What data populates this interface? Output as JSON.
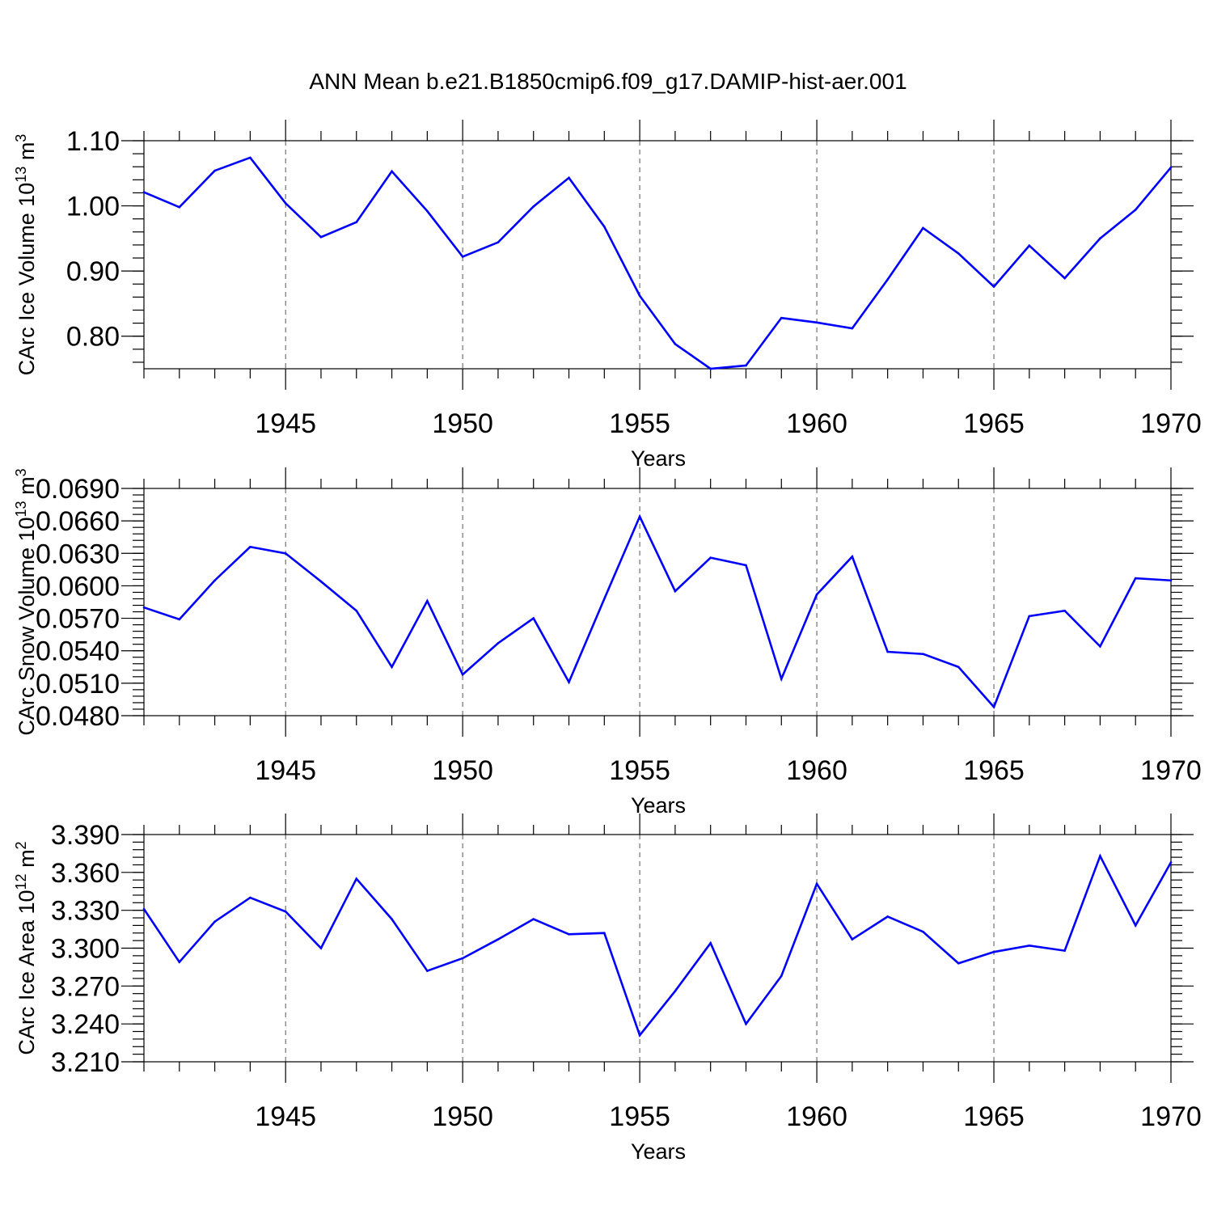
{
  "figure": {
    "title": "ANN Mean b.e21.B1850cmip6.f09_g17.DAMIP-hist-aer.001"
  },
  "style": {
    "line_color": "#0000ff",
    "axis_color": "#000000",
    "grid_color": "#555555"
  },
  "chart_data": [
    {
      "type": "line",
      "name": "ice-volume",
      "title": "",
      "xlabel": "Years",
      "ylabel": "CArc Ice Volume 10",
      "ylabel_exp": "13",
      "ylabel_unit": " m",
      "ylabel_unit_exp": "3",
      "xlim": [
        1941,
        1970
      ],
      "ylim": [
        0.75,
        1.1
      ],
      "xticks": [
        1945,
        1950,
        1955,
        1960,
        1965,
        1970
      ],
      "xtick_labels": [
        "1945",
        "1950",
        "1955",
        "1960",
        "1965",
        "1970"
      ],
      "yticks": [
        0.8,
        0.9,
        1.0,
        1.1
      ],
      "ytick_labels": [
        "0.80",
        "0.90",
        "1.00",
        "1.10"
      ],
      "x": [
        1941,
        1942,
        1943,
        1944,
        1945,
        1946,
        1947,
        1948,
        1949,
        1950,
        1951,
        1952,
        1953,
        1954,
        1955,
        1956,
        1957,
        1958,
        1959,
        1960,
        1961,
        1962,
        1963,
        1964,
        1965,
        1966,
        1967,
        1968,
        1969,
        1970
      ],
      "series": [
        {
          "name": "CArc Ice Volume",
          "values": [
            1.021,
            0.998,
            1.054,
            1.074,
            1.004,
            0.952,
            0.975,
            1.053,
            0.992,
            0.922,
            0.944,
            0.999,
            1.043,
            0.968,
            0.862,
            0.788,
            0.75,
            0.755,
            0.828,
            0.821,
            0.812,
            0.887,
            0.966,
            0.927,
            0.876,
            0.939,
            0.889,
            0.95,
            0.994,
            1.059
          ]
        }
      ],
      "grid": "vertical dashed at major x ticks"
    },
    {
      "type": "line",
      "name": "snow-volume",
      "title": "",
      "xlabel": "Years",
      "ylabel": "CArc Snow Volume 10",
      "ylabel_exp": "13",
      "ylabel_unit": " m",
      "ylabel_unit_exp": "3",
      "xlim": [
        1941,
        1970
      ],
      "ylim": [
        0.048,
        0.069
      ],
      "xticks": [
        1945,
        1950,
        1955,
        1960,
        1965,
        1970
      ],
      "xtick_labels": [
        "1945",
        "1950",
        "1955",
        "1960",
        "1965",
        "1970"
      ],
      "yticks": [
        0.048,
        0.051,
        0.054,
        0.057,
        0.06,
        0.063,
        0.066,
        0.069
      ],
      "ytick_labels": [
        "0.0480",
        "0.0510",
        "0.0540",
        "0.0570",
        "0.0600",
        "0.0630",
        "0.0660",
        "0.0690"
      ],
      "x": [
        1941,
        1942,
        1943,
        1944,
        1945,
        1946,
        1947,
        1948,
        1949,
        1950,
        1951,
        1952,
        1953,
        1954,
        1955,
        1956,
        1957,
        1958,
        1959,
        1960,
        1961,
        1962,
        1963,
        1964,
        1965,
        1966,
        1967,
        1968,
        1969,
        1970
      ],
      "series": [
        {
          "name": "CArc Snow Volume",
          "values": [
            0.058,
            0.0569,
            0.0605,
            0.0636,
            0.063,
            0.0604,
            0.0577,
            0.0525,
            0.0586,
            0.0518,
            0.0547,
            0.057,
            0.0511,
            0.0588,
            0.0664,
            0.0595,
            0.0626,
            0.0619,
            0.0514,
            0.0592,
            0.0627,
            0.0539,
            0.0537,
            0.0525,
            0.0488,
            0.0572,
            0.0577,
            0.0544,
            0.0607,
            0.0605
          ]
        }
      ],
      "grid": "vertical dashed at major x ticks"
    },
    {
      "type": "line",
      "name": "ice-area",
      "title": "",
      "xlabel": "Years",
      "ylabel": "CArc Ice Area 10",
      "ylabel_exp": "12",
      "ylabel_unit": " m",
      "ylabel_unit_exp": "2",
      "xlim": [
        1941,
        1970
      ],
      "ylim": [
        3.21,
        3.39
      ],
      "xticks": [
        1945,
        1950,
        1955,
        1960,
        1965,
        1970
      ],
      "xtick_labels": [
        "1945",
        "1950",
        "1955",
        "1960",
        "1965",
        "1970"
      ],
      "yticks": [
        3.21,
        3.24,
        3.27,
        3.3,
        3.33,
        3.36,
        3.39
      ],
      "ytick_labels": [
        "3.210",
        "3.240",
        "3.270",
        "3.300",
        "3.330",
        "3.360",
        "3.390"
      ],
      "x": [
        1941,
        1942,
        1943,
        1944,
        1945,
        1946,
        1947,
        1948,
        1949,
        1950,
        1951,
        1952,
        1953,
        1954,
        1955,
        1956,
        1957,
        1958,
        1959,
        1960,
        1961,
        1962,
        1963,
        1964,
        1965,
        1966,
        1967,
        1968,
        1969,
        1970
      ],
      "series": [
        {
          "name": "CArc Ice Area",
          "values": [
            3.331,
            3.289,
            3.321,
            3.34,
            3.329,
            3.3,
            3.355,
            3.323,
            3.282,
            3.292,
            3.307,
            3.323,
            3.311,
            3.312,
            3.231,
            3.266,
            3.304,
            3.24,
            3.278,
            3.351,
            3.307,
            3.325,
            3.313,
            3.288,
            3.297,
            3.302,
            3.298,
            3.373,
            3.318,
            3.368
          ]
        }
      ],
      "grid": "vertical dashed at major x ticks"
    }
  ]
}
